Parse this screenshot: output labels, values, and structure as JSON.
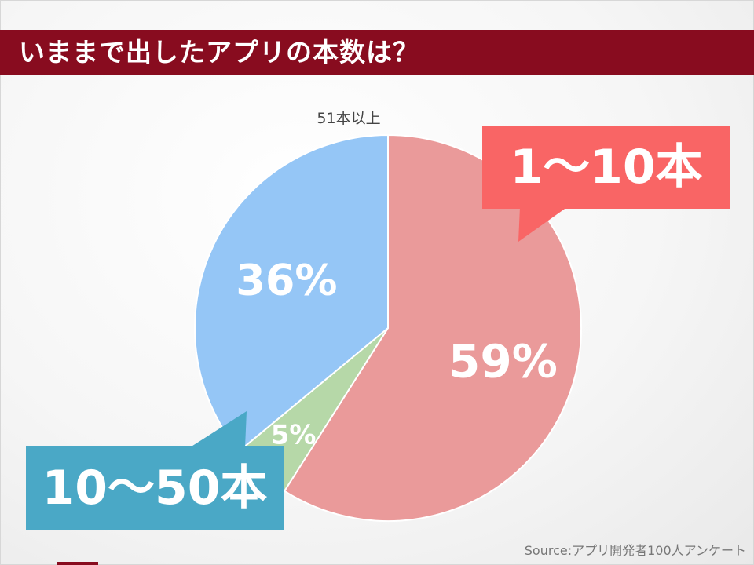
{
  "title": "いままで出したアプリの本数は？",
  "source": "Source:アプリ開発者100人アンケート",
  "chart_data": {
    "type": "pie",
    "title": "",
    "slices": [
      {
        "label": "1〜10本",
        "value": 59,
        "value_label": "59%",
        "color": "#ea9a9a"
      },
      {
        "label": "51本以上",
        "value": 5,
        "value_label": "5%",
        "color": "#b6d8a8"
      },
      {
        "label": "10〜50本",
        "value": 36,
        "value_label": "36%",
        "color": "#95c6f6"
      }
    ],
    "start": "12 o'clock",
    "direction": "clockwise",
    "legend": "none",
    "category_labels": {
      "1〜10本": "callout box, top-right",
      "10〜50本": "callout box, bottom-left",
      "51本以上": "text above slice"
    }
  },
  "colors": {
    "title_bar": "#880c1f",
    "callout_1_10": "#f96565",
    "callout_10_50": "#4aa8c6"
  }
}
